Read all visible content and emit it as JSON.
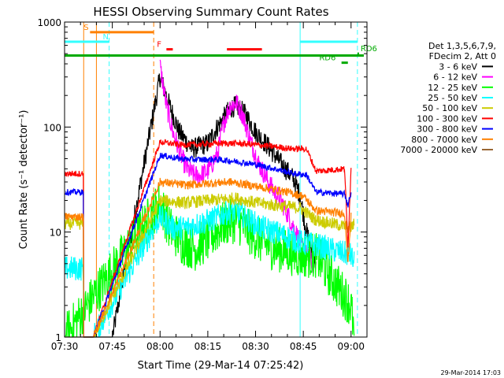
{
  "chart_data": {
    "type": "line",
    "title": "HESSI Observing Summary Count Rates",
    "xlabel": "Start Time (29-Mar-14 07:25:42)",
    "ylabel": "Count Rate (s⁻¹ detector⁻¹)",
    "yscale": "log",
    "ylim": [
      1,
      1000
    ],
    "xlim_minutes": [
      -30,
      65
    ],
    "x_unit": "minutes after 08:00 UT",
    "x_ticks": [
      {
        "label": "07:30",
        "min": -30
      },
      {
        "label": "07:45",
        "min": -15
      },
      {
        "label": "08:00",
        "min": 0
      },
      {
        "label": "08:15",
        "min": 15
      },
      {
        "label": "08:30",
        "min": 30
      },
      {
        "label": "08:45",
        "min": 45
      },
      {
        "label": "09:00",
        "min": 60
      }
    ],
    "y_ticks": [
      {
        "label": "1",
        "value": 1
      },
      {
        "label": "10",
        "value": 10
      },
      {
        "label": "100",
        "value": 100
      },
      {
        "label": "1000",
        "value": 1000
      }
    ],
    "legend": {
      "position": "right",
      "header": [
        "Det 1,3,5,6,7,9,",
        "FDecim 2, Att 0"
      ],
      "entries": [
        {
          "label": "3 - 6 keV",
          "color": "#000000"
        },
        {
          "label": "6 - 12 keV",
          "color": "#ff00ff"
        },
        {
          "label": "12 - 25 keV",
          "color": "#00ff00"
        },
        {
          "label": "25 - 50 keV",
          "color": "#00ffff"
        },
        {
          "label": "50 - 100 keV",
          "color": "#cccc00"
        },
        {
          "label": "100 - 300 keV",
          "color": "#ff0000"
        },
        {
          "label": "300 - 800 keV",
          "color": "#0000ff"
        },
        {
          "label": "800 - 7000 keV",
          "color": "#ff8000"
        },
        {
          "label": "7000 - 20000 keV",
          "color": "#996633"
        }
      ]
    },
    "series": [
      {
        "name": "3 - 6 keV",
        "color": "#000000",
        "noise": 0.1,
        "points": [
          [
            -24,
            1
          ],
          [
            -21,
            1
          ],
          [
            -15,
            1
          ],
          [
            0,
            300
          ],
          [
            3,
            160
          ],
          [
            6,
            90
          ],
          [
            10,
            62
          ],
          [
            15,
            70
          ],
          [
            18,
            100
          ],
          [
            22,
            150
          ],
          [
            24,
            160
          ],
          [
            27,
            130
          ],
          [
            30,
            90
          ],
          [
            34,
            65
          ],
          [
            38,
            45
          ],
          [
            42,
            32
          ],
          [
            44,
            22
          ],
          [
            45,
            15
          ],
          [
            46,
            10
          ],
          [
            47,
            8
          ],
          [
            48,
            6
          ],
          [
            49,
            5
          ]
        ]
      },
      {
        "name": "6 - 12 keV",
        "color": "#ff00ff",
        "noise": 0.1,
        "points": [
          [
            0,
            380
          ],
          [
            2,
            160
          ],
          [
            4,
            90
          ],
          [
            6,
            60
          ],
          [
            8,
            42
          ],
          [
            10,
            36
          ],
          [
            12,
            34
          ],
          [
            15,
            38
          ],
          [
            18,
            55
          ],
          [
            20,
            110
          ],
          [
            22,
            160
          ],
          [
            24,
            170
          ],
          [
            26,
            130
          ],
          [
            28,
            80
          ],
          [
            31,
            45
          ],
          [
            34,
            30
          ],
          [
            36,
            24
          ],
          [
            38,
            20
          ],
          [
            40,
            15
          ],
          [
            42,
            11
          ],
          [
            44,
            8
          ],
          [
            46,
            6
          ],
          [
            48,
            5
          ]
        ]
      },
      {
        "name": "12 - 25 keV",
        "color": "#00ff00",
        "noise": 0.22,
        "points": [
          [
            -30,
            1
          ],
          [
            0,
            19
          ],
          [
            3,
            11
          ],
          [
            7,
            8
          ],
          [
            11,
            7
          ],
          [
            16,
            9
          ],
          [
            20,
            12
          ],
          [
            24,
            13
          ],
          [
            28,
            10
          ],
          [
            32,
            8
          ],
          [
            36,
            7
          ],
          [
            40,
            6.5
          ],
          [
            44,
            6
          ],
          [
            49,
            6
          ],
          [
            60,
            2
          ],
          [
            61,
            1
          ]
        ]
      },
      {
        "name": "25 - 50 keV",
        "color": "#00ffff",
        "noise": 0.12,
        "points": [
          [
            -30,
            4.5
          ],
          [
            -24,
            4.5
          ],
          [
            -24,
            1
          ],
          [
            -21,
            1
          ],
          [
            0,
            14
          ],
          [
            4,
            11
          ],
          [
            8,
            11
          ],
          [
            12,
            12
          ],
          [
            16,
            13
          ],
          [
            20,
            15
          ],
          [
            24,
            16
          ],
          [
            28,
            13
          ],
          [
            32,
            11
          ],
          [
            36,
            10
          ],
          [
            40,
            9
          ],
          [
            44,
            8
          ],
          [
            49,
            7.5
          ],
          [
            60,
            6
          ],
          [
            61,
            5
          ]
        ]
      },
      {
        "name": "50 - 100 keV",
        "color": "#cccc00",
        "noise": 0.06,
        "points": [
          [
            -30,
            12
          ],
          [
            -24,
            12
          ],
          [
            -24,
            1
          ],
          [
            -21,
            1
          ],
          [
            0,
            20
          ],
          [
            8,
            19
          ],
          [
            15,
            20
          ],
          [
            24,
            21
          ],
          [
            30,
            19
          ],
          [
            36,
            18
          ],
          [
            44,
            17
          ],
          [
            49,
            13
          ],
          [
            60,
            11
          ],
          [
            61,
            12
          ]
        ]
      },
      {
        "name": "100 - 300 keV",
        "color": "#ff0000",
        "noise": 0.03,
        "points": [
          [
            -30,
            36
          ],
          [
            -24,
            36
          ],
          [
            -24,
            1
          ],
          [
            -21,
            1
          ],
          [
            0,
            72
          ],
          [
            6,
            68
          ],
          [
            12,
            68
          ],
          [
            18,
            70
          ],
          [
            24,
            70
          ],
          [
            30,
            68
          ],
          [
            36,
            65
          ],
          [
            42,
            62
          ],
          [
            46,
            62
          ],
          [
            49,
            38
          ],
          [
            58,
            40
          ],
          [
            59,
            7
          ],
          [
            60,
            40
          ]
        ]
      },
      {
        "name": "300 - 800 keV",
        "color": "#0000ff",
        "noise": 0.03,
        "points": [
          [
            -30,
            24
          ],
          [
            -24,
            24
          ],
          [
            -24,
            1
          ],
          [
            -21,
            1
          ],
          [
            0,
            54
          ],
          [
            6,
            50
          ],
          [
            12,
            49
          ],
          [
            18,
            49
          ],
          [
            24,
            47
          ],
          [
            30,
            44
          ],
          [
            36,
            40
          ],
          [
            42,
            36
          ],
          [
            46,
            35
          ],
          [
            49,
            24
          ],
          [
            58,
            23
          ],
          [
            59,
            18
          ],
          [
            60,
            24
          ]
        ]
      },
      {
        "name": "800 - 7000 keV",
        "color": "#ff8000",
        "noise": 0.04,
        "points": [
          [
            -30,
            14
          ],
          [
            -24,
            14
          ],
          [
            -24,
            1
          ],
          [
            -21,
            1
          ],
          [
            0,
            30
          ],
          [
            8,
            28
          ],
          [
            15,
            29
          ],
          [
            22,
            30
          ],
          [
            28,
            28
          ],
          [
            34,
            26
          ],
          [
            40,
            24
          ],
          [
            45,
            22
          ],
          [
            49,
            16
          ],
          [
            58,
            15
          ],
          [
            59,
            5
          ],
          [
            60,
            14
          ]
        ]
      },
      {
        "name": "7000 - 20000 keV",
        "color": "#996633",
        "noise": 0.0,
        "points": [
          [
            -30,
            1
          ],
          [
            -21,
            1
          ]
        ]
      }
    ],
    "flag_bars": [
      {
        "label": "S",
        "color": "#ff8000",
        "y": 800,
        "x0": -22,
        "x1": -2,
        "label_at": -24
      },
      {
        "label": "N",
        "color": "#33ffff",
        "y": 650,
        "x0": -30,
        "x1": -16,
        "label_at": -18
      },
      {
        "label": "",
        "color": "#33ffff",
        "y": 650,
        "x0": 44,
        "x1": 62,
        "label_at": 44
      },
      {
        "label": "F",
        "color": "#ff0000",
        "y": 550,
        "x0": 2,
        "x1": 4,
        "label_at": -1
      },
      {
        "label": "",
        "color": "#ff0000",
        "y": 550,
        "x0": 21,
        "x1": 32,
        "label_at": 21
      },
      {
        "label": "",
        "color": "#00aa00",
        "y": 480,
        "x0": -30,
        "x1": 64,
        "label_at": -30
      },
      {
        "label": "RD6",
        "color": "#00aa00",
        "y": 500,
        "x0": 62,
        "x1": 62.5,
        "label_at": 63
      },
      {
        "label": "RD6",
        "color": "#00aa00",
        "y": 410,
        "x0": 57,
        "x1": 59,
        "label_at": 50
      }
    ],
    "vlines": [
      {
        "x": -24,
        "color": "#ff8000",
        "dash": false
      },
      {
        "x": -20,
        "color": "#ff8000",
        "dash": false
      },
      {
        "x": -16,
        "color": "#33ffff",
        "dash": true
      },
      {
        "x": -2,
        "color": "#ff8000",
        "dash": true
      },
      {
        "x": 44,
        "color": "#33ffff",
        "dash": false
      },
      {
        "x": 62,
        "color": "#33ffff",
        "dash": true
      }
    ],
    "footer": "29-Mar-2014 17:03"
  }
}
